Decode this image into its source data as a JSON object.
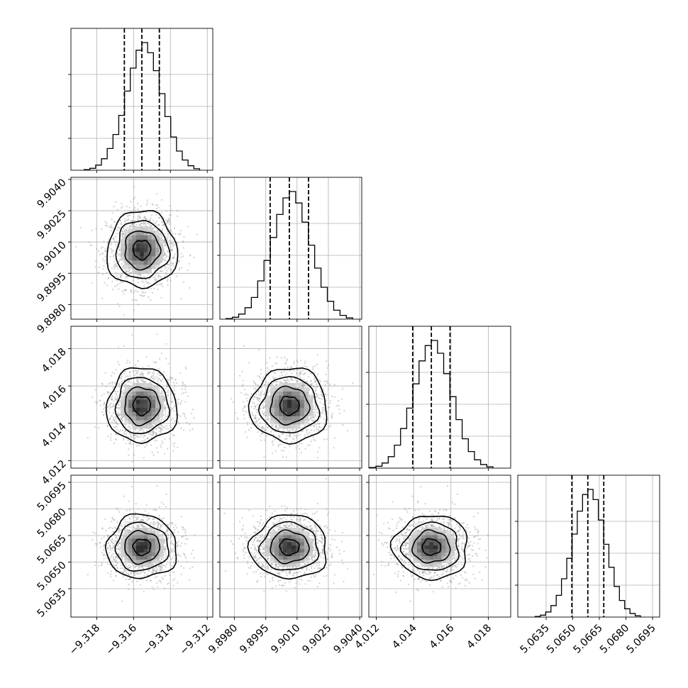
{
  "chart_data": {
    "type": "corner",
    "description_from_figure": "posterior corner plot of 4 parameters: 1-D marginal histograms on diagonal with dashed 16/50/84 percentile lines; 2-D scatter + density + contours below diagonal",
    "grid": true,
    "parameters": [
      {
        "index": 0,
        "median": -9.31555,
        "q16": -9.3165,
        "q84": -9.3146,
        "sigma": 0.00095,
        "range": [
          -9.3194,
          -9.3117
        ],
        "ticks": [
          -9.318,
          -9.316,
          -9.314,
          -9.312
        ],
        "tick_labels": [
          "−9.318",
          "−9.316",
          "−9.314",
          "−9.312"
        ]
      },
      {
        "index": 1,
        "median": 9.90063,
        "q16": 9.89971,
        "q84": 9.90155,
        "sigma": 0.00092,
        "range": [
          9.8973,
          9.9041
        ],
        "ticks": [
          9.898,
          9.8995,
          9.901,
          9.9025,
          9.904
        ],
        "tick_labels": [
          "9.8980",
          "9.8995",
          "9.9010",
          "9.9025",
          "9.9040"
        ]
      },
      {
        "index": 2,
        "median": 4.01495,
        "q16": 4.01395,
        "q84": 4.01595,
        "sigma": 0.001,
        "range": [
          4.0116,
          4.0192
        ],
        "ticks": [
          4.012,
          4.014,
          4.016,
          4.018
        ],
        "tick_labels": [
          "4.012",
          "4.014",
          "4.016",
          "4.018"
        ]
      },
      {
        "index": 3,
        "median": 5.06585,
        "q16": 5.06495,
        "q84": 5.06675,
        "sigma": 0.0009,
        "range": [
          5.0619,
          5.0699
        ],
        "ticks": [
          5.0635,
          5.065,
          5.0665,
          5.068,
          5.0695
        ],
        "tick_labels": [
          "5.0635",
          "5.0650",
          "5.0665",
          "5.0680",
          "5.0695"
        ]
      }
    ],
    "histograms": [
      {
        "param": 0,
        "bins": 20,
        "relative_counts": [
          0.005,
          0.015,
          0.04,
          0.09,
          0.17,
          0.28,
          0.43,
          0.62,
          0.8,
          0.94,
          1.0,
          0.92,
          0.78,
          0.6,
          0.42,
          0.26,
          0.15,
          0.08,
          0.035,
          0.012
        ]
      },
      {
        "param": 1,
        "bins": 20,
        "relative_counts": [
          0.005,
          0.015,
          0.04,
          0.09,
          0.17,
          0.3,
          0.46,
          0.64,
          0.82,
          0.95,
          1.0,
          0.91,
          0.76,
          0.58,
          0.4,
          0.25,
          0.14,
          0.07,
          0.03,
          0.01
        ]
      },
      {
        "param": 2,
        "bins": 20,
        "relative_counts": [
          0.005,
          0.015,
          0.04,
          0.09,
          0.18,
          0.31,
          0.47,
          0.66,
          0.84,
          0.96,
          1.0,
          0.9,
          0.74,
          0.56,
          0.38,
          0.23,
          0.13,
          0.065,
          0.028,
          0.01
        ]
      },
      {
        "param": 3,
        "bins": 20,
        "relative_counts": [
          0.005,
          0.015,
          0.04,
          0.09,
          0.17,
          0.3,
          0.46,
          0.65,
          0.83,
          0.96,
          1.0,
          0.92,
          0.76,
          0.57,
          0.39,
          0.24,
          0.13,
          0.065,
          0.028,
          0.01
        ]
      }
    ],
    "contour_levels_sigma": [
      0.5,
      1.0,
      1.5,
      2.0
    ],
    "scatter_sigma_extent": 3.3,
    "colors": {
      "ink": "#000000",
      "scatter": "#9a9a9a",
      "grid": "#b0b0b0",
      "background": "#ffffff"
    }
  }
}
